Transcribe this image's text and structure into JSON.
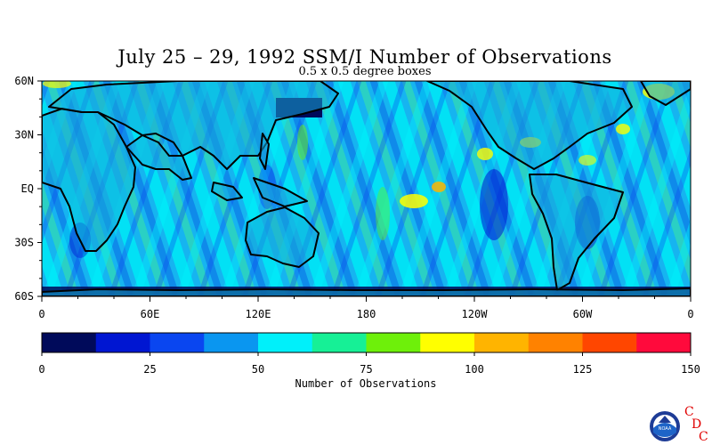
{
  "map": {
    "title": "July 25 – 29, 1992 SSM/I Number of Observations",
    "subtitle": "0.5 x 0.5 degree boxes",
    "lat_labels": [
      "60N",
      "30N",
      "EQ",
      "30S",
      "60S"
    ],
    "lon_labels": [
      "0",
      "60E",
      "120E",
      "180",
      "120W",
      "60W",
      "0"
    ],
    "extent": {
      "lon": [
        0,
        360
      ],
      "lat": [
        -60,
        60
      ]
    },
    "field_description": "swath-striped observation counts over ocean and land"
  },
  "colorbar": {
    "title": "Number of Observations",
    "tick_labels": [
      "0",
      "25",
      "50",
      "75",
      "100",
      "125",
      "150"
    ],
    "range": [
      0,
      150
    ],
    "bins": 12,
    "colors": [
      "#000a5a",
      "#0016d2",
      "#0a46f0",
      "#0a96f0",
      "#00f0fa",
      "#16f096",
      "#6ef00a",
      "#ffff00",
      "#ffb400",
      "#ff8200",
      "#ff4600",
      "#ff0a3c"
    ]
  },
  "logo": {
    "agency": "NOAA",
    "letters": [
      "C",
      "D",
      "C"
    ],
    "letter_color": "#e00000"
  }
}
